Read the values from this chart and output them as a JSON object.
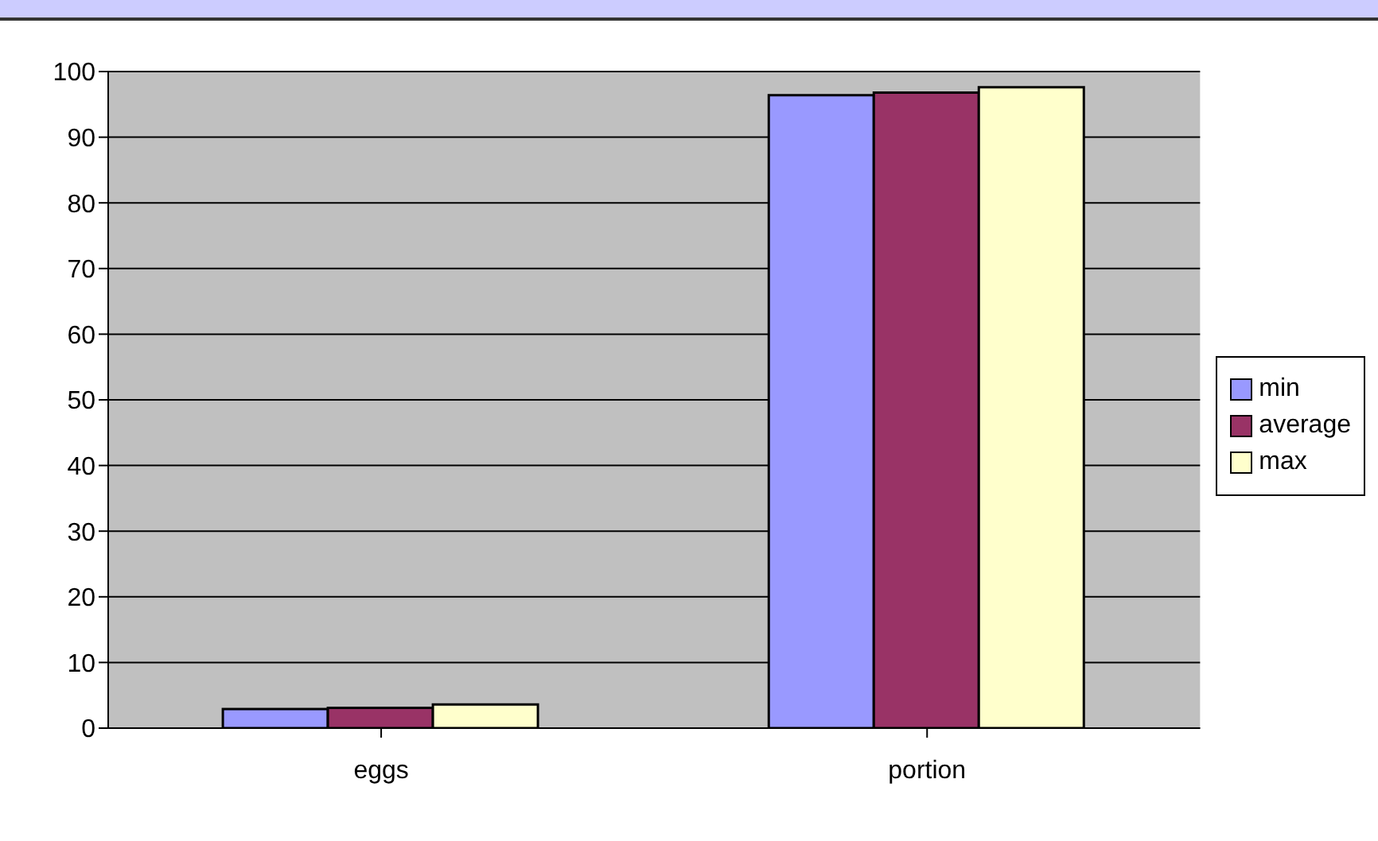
{
  "chart_data": {
    "type": "bar",
    "categories": [
      "eggs",
      "portion"
    ],
    "series": [
      {
        "name": "min",
        "color": "#9999ff",
        "values": [
          2.9,
          96.4
        ]
      },
      {
        "name": "average",
        "color": "#993366",
        "values": [
          3.1,
          96.8
        ]
      },
      {
        "name": "max",
        "color": "#ffffcc",
        "values": [
          3.6,
          97.6
        ]
      }
    ],
    "ylim": [
      0,
      100
    ],
    "yticks": [
      0,
      10,
      20,
      30,
      40,
      50,
      60,
      70,
      80,
      90,
      100
    ],
    "grid": "y",
    "legend": "right"
  }
}
